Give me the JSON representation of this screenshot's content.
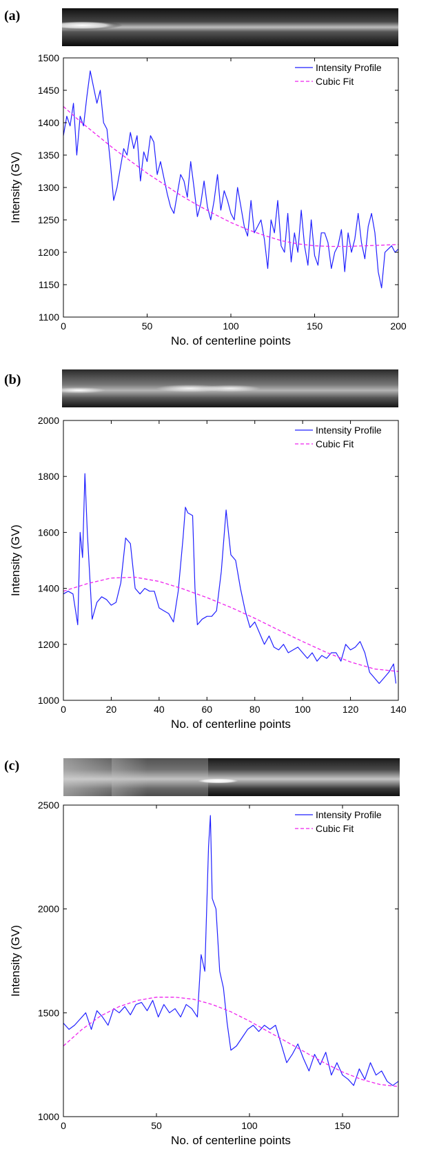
{
  "chart_data": [
    {
      "type": "line",
      "panel_label": "(a)",
      "xlabel": "No. of centerline points",
      "ylabel": "Intensity (GV)",
      "xlim": [
        0,
        200
      ],
      "ylim": [
        1100,
        1500
      ],
      "xticks": [
        0,
        50,
        100,
        150,
        200
      ],
      "yticks": [
        1100,
        1150,
        1200,
        1250,
        1300,
        1350,
        1400,
        1450,
        1500
      ],
      "legend_position": "top-right",
      "grid": false,
      "series": [
        {
          "name": "Intensity Profile",
          "color": "#1f1fff",
          "style": "solid",
          "x": [
            0,
            2,
            4,
            6,
            8,
            10,
            12,
            14,
            16,
            18,
            20,
            22,
            24,
            26,
            28,
            30,
            32,
            34,
            36,
            38,
            40,
            42,
            44,
            46,
            48,
            50,
            52,
            54,
            56,
            58,
            60,
            62,
            64,
            66,
            68,
            70,
            72,
            74,
            76,
            78,
            80,
            82,
            84,
            86,
            88,
            90,
            92,
            94,
            96,
            98,
            100,
            102,
            104,
            106,
            108,
            110,
            112,
            114,
            116,
            118,
            120,
            122,
            124,
            126,
            128,
            130,
            132,
            134,
            136,
            138,
            140,
            142,
            144,
            146,
            148,
            150,
            152,
            154,
            156,
            158,
            160,
            162,
            164,
            166,
            168,
            170,
            172,
            174,
            176,
            178,
            180,
            182,
            184,
            186,
            188,
            190,
            192,
            194,
            196,
            198,
            200
          ],
          "values": [
            1380,
            1410,
            1395,
            1430,
            1350,
            1410,
            1395,
            1440,
            1480,
            1455,
            1430,
            1450,
            1400,
            1390,
            1340,
            1280,
            1300,
            1330,
            1360,
            1350,
            1385,
            1360,
            1380,
            1310,
            1355,
            1340,
            1380,
            1370,
            1320,
            1340,
            1315,
            1290,
            1270,
            1260,
            1290,
            1320,
            1310,
            1285,
            1340,
            1300,
            1255,
            1275,
            1310,
            1270,
            1250,
            1280,
            1320,
            1265,
            1295,
            1280,
            1260,
            1250,
            1300,
            1270,
            1240,
            1225,
            1280,
            1230,
            1240,
            1250,
            1220,
            1175,
            1250,
            1230,
            1280,
            1210,
            1200,
            1260,
            1185,
            1230,
            1200,
            1265,
            1210,
            1180,
            1250,
            1195,
            1180,
            1230,
            1230,
            1215,
            1175,
            1200,
            1210,
            1235,
            1170,
            1230,
            1200,
            1220,
            1260,
            1215,
            1190,
            1240,
            1260,
            1230,
            1170,
            1145,
            1200,
            1205,
            1210,
            1200,
            1205
          ]
        },
        {
          "name": "Cubic Fit",
          "color": "#ee22ee",
          "style": "dashed",
          "x": [
            0,
            10,
            20,
            30,
            40,
            50,
            60,
            70,
            80,
            90,
            100,
            110,
            120,
            130,
            140,
            150,
            160,
            170,
            180,
            190,
            200
          ],
          "values": [
            1425,
            1402,
            1381,
            1360,
            1341,
            1322,
            1305,
            1288,
            1273,
            1259,
            1246,
            1235,
            1226,
            1218,
            1213,
            1210,
            1209,
            1209,
            1210,
            1211,
            1212
          ]
        }
      ]
    },
    {
      "type": "line",
      "panel_label": "(b)",
      "xlabel": "No. of centerline points",
      "ylabel": "Intensity (GV)",
      "xlim": [
        0,
        140
      ],
      "ylim": [
        1000,
        2000
      ],
      "xticks": [
        0,
        20,
        40,
        60,
        80,
        100,
        120,
        140
      ],
      "yticks": [
        1000,
        1200,
        1400,
        1600,
        1800,
        2000
      ],
      "legend_position": "top-right",
      "grid": false,
      "series": [
        {
          "name": "Intensity Profile",
          "color": "#1f1fff",
          "style": "solid",
          "x": [
            0,
            2,
            4,
            6,
            7,
            8,
            9,
            10,
            12,
            14,
            16,
            18,
            20,
            22,
            24,
            26,
            28,
            30,
            32,
            34,
            36,
            38,
            40,
            42,
            44,
            46,
            48,
            50,
            51,
            52,
            54,
            55,
            56,
            58,
            60,
            62,
            64,
            66,
            68,
            69,
            70,
            72,
            74,
            76,
            78,
            80,
            82,
            84,
            86,
            88,
            90,
            92,
            94,
            96,
            98,
            100,
            102,
            104,
            106,
            108,
            110,
            112,
            114,
            116,
            118,
            120,
            122,
            124,
            126,
            128,
            130,
            132,
            134,
            136,
            138,
            139
          ],
          "values": [
            1380,
            1390,
            1380,
            1270,
            1600,
            1510,
            1810,
            1600,
            1290,
            1350,
            1370,
            1360,
            1340,
            1350,
            1420,
            1580,
            1560,
            1400,
            1380,
            1400,
            1390,
            1390,
            1330,
            1320,
            1310,
            1280,
            1390,
            1580,
            1690,
            1670,
            1660,
            1400,
            1270,
            1290,
            1300,
            1300,
            1320,
            1460,
            1680,
            1600,
            1520,
            1500,
            1400,
            1320,
            1260,
            1280,
            1240,
            1200,
            1230,
            1190,
            1180,
            1200,
            1170,
            1180,
            1190,
            1170,
            1150,
            1170,
            1140,
            1160,
            1150,
            1170,
            1170,
            1140,
            1200,
            1180,
            1190,
            1210,
            1170,
            1100,
            1080,
            1060,
            1080,
            1100,
            1130,
            1060
          ]
        },
        {
          "name": "Cubic Fit",
          "color": "#ee22ee",
          "style": "dashed",
          "x": [
            0,
            10,
            20,
            30,
            40,
            50,
            60,
            70,
            80,
            90,
            100,
            110,
            120,
            130,
            140
          ],
          "values": [
            1390,
            1417,
            1437,
            1440,
            1425,
            1398,
            1367,
            1332,
            1293,
            1251,
            1210,
            1171,
            1137,
            1112,
            1103
          ]
        }
      ]
    },
    {
      "type": "line",
      "panel_label": "(c)",
      "xlabel": "No. of centerline points",
      "ylabel": "Intensity (GV)",
      "xlim": [
        0,
        180
      ],
      "ylim": [
        1000,
        2500
      ],
      "xticks": [
        0,
        50,
        100,
        150
      ],
      "yticks": [
        1000,
        1500,
        2000,
        2500
      ],
      "legend_position": "top-right",
      "grid": false,
      "series": [
        {
          "name": "Intensity Profile",
          "color": "#1f1fff",
          "style": "solid",
          "x": [
            0,
            3,
            6,
            9,
            12,
            15,
            18,
            21,
            24,
            27,
            30,
            33,
            36,
            39,
            42,
            45,
            48,
            51,
            54,
            57,
            60,
            63,
            66,
            69,
            72,
            74,
            76,
            78,
            79,
            80,
            82,
            84,
            86,
            88,
            90,
            93,
            96,
            99,
            102,
            105,
            108,
            111,
            114,
            117,
            120,
            123,
            126,
            129,
            132,
            135,
            138,
            141,
            144,
            147,
            150,
            153,
            156,
            159,
            162,
            165,
            168,
            171,
            174,
            177,
            180
          ],
          "values": [
            1450,
            1420,
            1440,
            1470,
            1500,
            1420,
            1510,
            1480,
            1440,
            1520,
            1500,
            1530,
            1490,
            1540,
            1550,
            1510,
            1560,
            1480,
            1540,
            1500,
            1520,
            1480,
            1540,
            1520,
            1480,
            1780,
            1700,
            2300,
            2450,
            2050,
            2000,
            1700,
            1620,
            1450,
            1320,
            1340,
            1380,
            1420,
            1440,
            1410,
            1440,
            1420,
            1440,
            1350,
            1260,
            1300,
            1350,
            1280,
            1220,
            1300,
            1250,
            1310,
            1200,
            1260,
            1200,
            1180,
            1150,
            1230,
            1180,
            1260,
            1200,
            1220,
            1170,
            1150,
            1170
          ]
        },
        {
          "name": "Cubic Fit",
          "color": "#ee22ee",
          "style": "dashed",
          "x": [
            0,
            10,
            20,
            30,
            40,
            50,
            60,
            70,
            80,
            90,
            100,
            110,
            120,
            130,
            140,
            150,
            160,
            170,
            180
          ],
          "values": [
            1340,
            1420,
            1485,
            1530,
            1560,
            1575,
            1575,
            1565,
            1540,
            1505,
            1460,
            1410,
            1360,
            1310,
            1260,
            1215,
            1180,
            1155,
            1145
          ]
        }
      ]
    }
  ]
}
